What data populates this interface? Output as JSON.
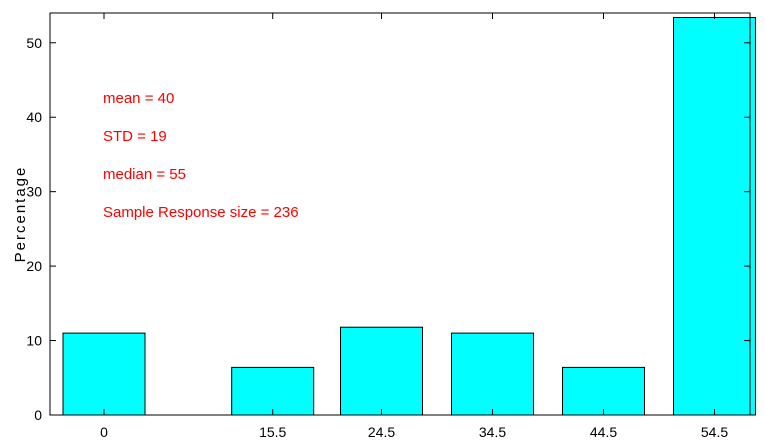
{
  "chart_data": {
    "type": "bar",
    "categories": [
      "0",
      "15.5",
      "24.5",
      "34.5",
      "44.5",
      "54.5"
    ],
    "x": [
      0,
      15.5,
      24.5,
      34.5,
      44.5,
      54.5
    ],
    "values": [
      11,
      6.4,
      11.8,
      11,
      6.4,
      53.4
    ],
    "xlabel": "",
    "ylabel": "Percentage",
    "ylim": [
      0,
      54
    ],
    "yticks": [
      0,
      10,
      20,
      30,
      40,
      50
    ],
    "grid": false,
    "bar_color": "#00ffff",
    "annotation_color": "#ff0000",
    "annotations": [
      "mean = 40",
      "STD = 19",
      "median = 55",
      "Sample Response size = 236"
    ]
  }
}
